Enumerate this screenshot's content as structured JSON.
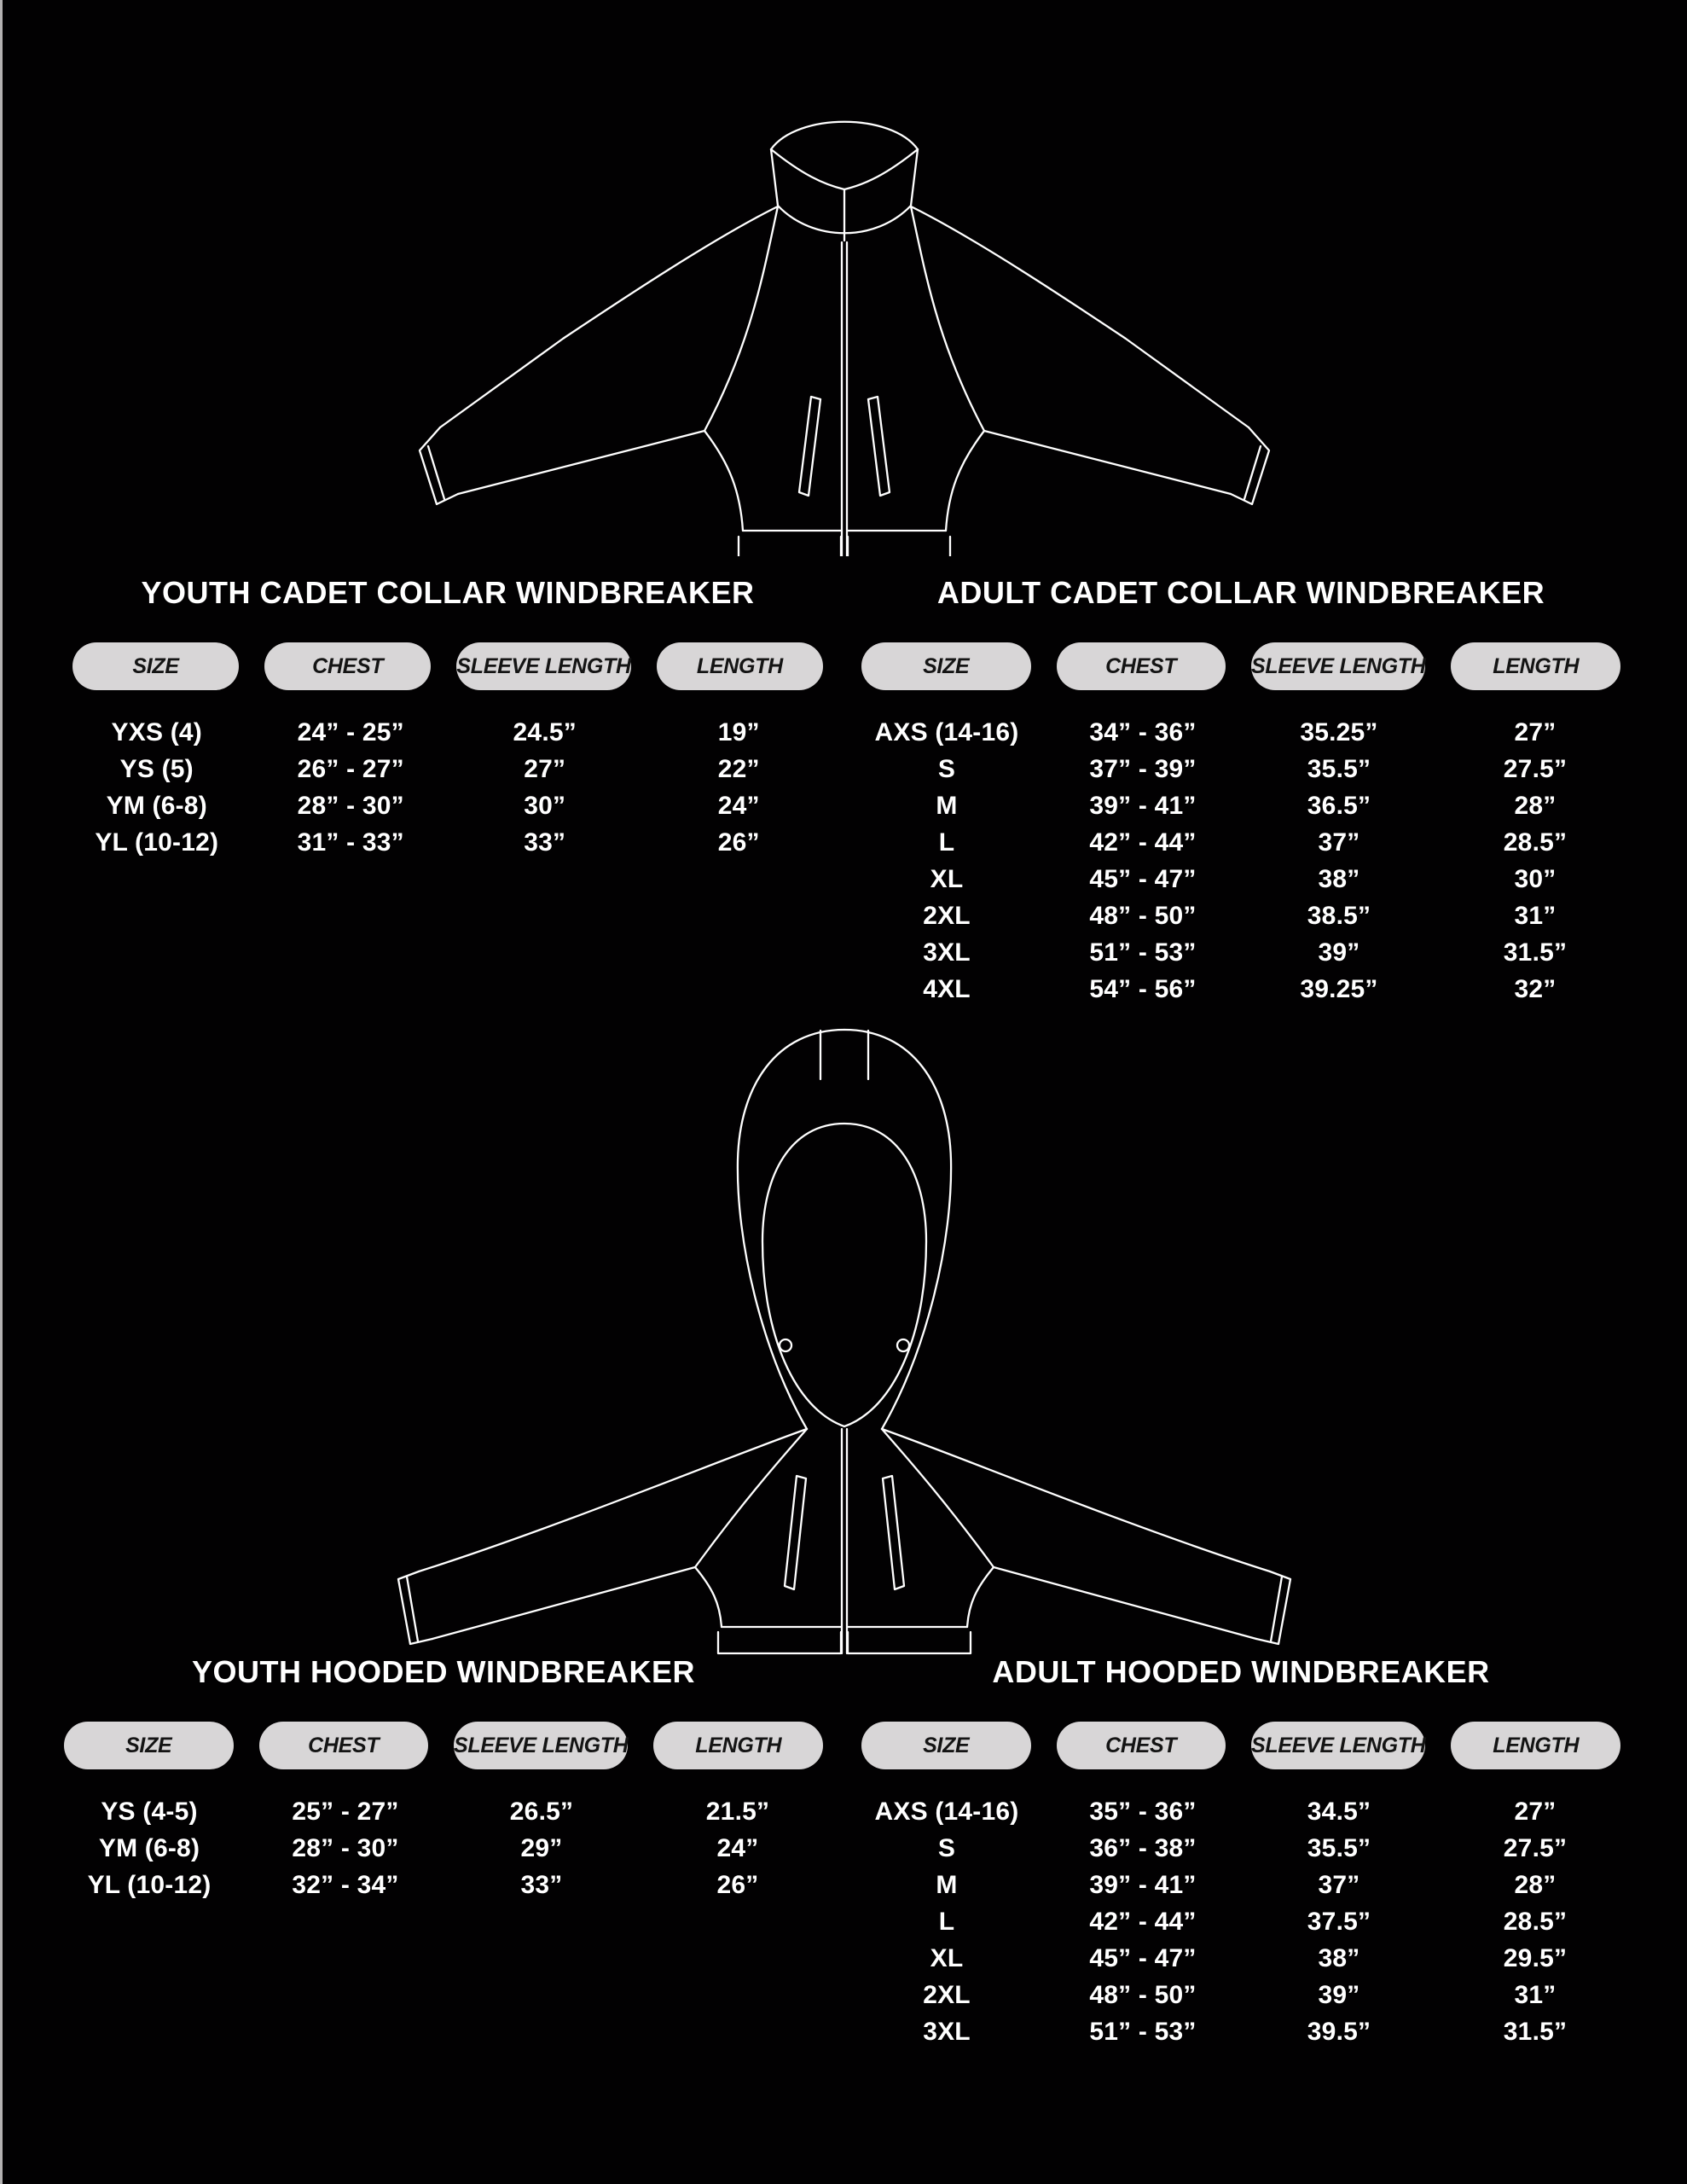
{
  "page": {
    "background": "#020102",
    "line_color": "#ffffff",
    "text_color": "#ffffff",
    "pill_background": "#d8d6d7",
    "pill_text_color": "#141414",
    "edge_line_color": "#b3b1b2"
  },
  "illustrations": [
    {
      "name": "cadet-collar-windbreaker-line-drawing"
    },
    {
      "name": "hooded-windbreaker-line-drawing"
    }
  ],
  "sections": [
    {
      "title": "YOUTH CADET COLLAR WINDBREAKER",
      "headers": [
        "SIZE",
        "CHEST",
        "SLEEVE LENGTH",
        "LENGTH"
      ],
      "rows": [
        [
          "YXS (4)",
          "24” - 25”",
          "24.5”",
          "19”"
        ],
        [
          "YS (5)",
          "26” - 27”",
          "27”",
          "22”"
        ],
        [
          "YM (6-8)",
          "28” - 30”",
          "30”",
          "24”"
        ],
        [
          "YL (10-12)",
          "31” - 33”",
          "33”",
          "26”"
        ]
      ]
    },
    {
      "title": "ADULT CADET COLLAR WINDBREAKER",
      "headers": [
        "SIZE",
        "CHEST",
        "SLEEVE LENGTH",
        "LENGTH"
      ],
      "rows": [
        [
          "AXS (14-16)",
          "34” - 36”",
          "35.25”",
          "27”"
        ],
        [
          "S",
          "37” - 39”",
          "35.5”",
          "27.5”"
        ],
        [
          "M",
          "39” - 41”",
          "36.5”",
          "28”"
        ],
        [
          "L",
          "42” - 44”",
          "37”",
          "28.5”"
        ],
        [
          "XL",
          "45” - 47”",
          "38”",
          "30”"
        ],
        [
          "2XL",
          "48” - 50”",
          "38.5”",
          "31”"
        ],
        [
          "3XL",
          "51” - 53”",
          "39”",
          "31.5”"
        ],
        [
          "4XL",
          "54” - 56”",
          "39.25”",
          "32”"
        ]
      ]
    },
    {
      "title": "YOUTH HOODED WINDBREAKER",
      "headers": [
        "SIZE",
        "CHEST",
        "SLEEVE LENGTH",
        "LENGTH"
      ],
      "rows": [
        [
          "YS (4-5)",
          "25” - 27”",
          "26.5”",
          "21.5”"
        ],
        [
          "YM (6-8)",
          "28” - 30”",
          "29”",
          "24”"
        ],
        [
          "YL (10-12)",
          "32” - 34”",
          "33”",
          "26”"
        ]
      ]
    },
    {
      "title": "ADULT HOODED WINDBREAKER",
      "headers": [
        "SIZE",
        "CHEST",
        "SLEEVE LENGTH",
        "LENGTH"
      ],
      "rows": [
        [
          "AXS (14-16)",
          "35” - 36”",
          "34.5”",
          "27”"
        ],
        [
          "S",
          "36” - 38”",
          "35.5”",
          "27.5”"
        ],
        [
          "M",
          "39” - 41”",
          "37”",
          "28”"
        ],
        [
          "L",
          "42” - 44”",
          "37.5”",
          "28.5”"
        ],
        [
          "XL",
          "45” - 47”",
          "38”",
          "29.5”"
        ],
        [
          "2XL",
          "48” - 50”",
          "39”",
          "31”"
        ],
        [
          "3XL",
          "51” - 53”",
          "39.5”",
          "31.5”"
        ]
      ]
    }
  ]
}
